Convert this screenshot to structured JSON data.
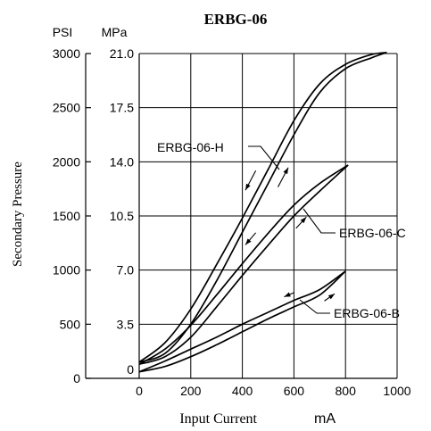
{
  "chart_data": {
    "type": "line",
    "title": "ERBG-06",
    "xlabel": "Input Current",
    "xunit": "mA",
    "ylabel": "Secondary Pressure",
    "y_left_unit": "PSI",
    "y_right_unit": "MPa",
    "xlim": [
      0,
      1000
    ],
    "ylim_psi": [
      0,
      3000
    ],
    "ylim_mpa": [
      0,
      21.0
    ],
    "x_ticks": [
      "0",
      "200",
      "400",
      "600",
      "800",
      "1000"
    ],
    "psi_ticks": [
      "0",
      "500",
      "1000",
      "1500",
      "2000",
      "2500",
      "3000"
    ],
    "mpa_ticks": [
      "0",
      "3.5",
      "7.0",
      "10.5",
      "14.0",
      "17.5",
      "21.0"
    ],
    "grid": true,
    "series": [
      {
        "name": "ERBG-06-H",
        "increasing": [
          [
            0,
            150
          ],
          [
            100,
            230
          ],
          [
            200,
            500
          ],
          [
            300,
            900
          ],
          [
            400,
            1350
          ],
          [
            500,
            1800
          ],
          [
            600,
            2250
          ],
          [
            700,
            2640
          ],
          [
            800,
            2860
          ],
          [
            900,
            2960
          ],
          [
            960,
            3010
          ]
        ],
        "decreasing": [
          [
            0,
            150
          ],
          [
            100,
            330
          ],
          [
            200,
            640
          ],
          [
            300,
            1050
          ],
          [
            400,
            1480
          ],
          [
            500,
            1930
          ],
          [
            600,
            2380
          ],
          [
            700,
            2720
          ],
          [
            800,
            2900
          ],
          [
            900,
            2990
          ],
          [
            960,
            3010
          ]
        ]
      },
      {
        "name": "ERBG-06-C",
        "increasing": [
          [
            0,
            130
          ],
          [
            100,
            200
          ],
          [
            200,
            380
          ],
          [
            300,
            660
          ],
          [
            400,
            950
          ],
          [
            500,
            1230
          ],
          [
            600,
            1500
          ],
          [
            700,
            1730
          ],
          [
            810,
            1970
          ]
        ],
        "decreasing": [
          [
            0,
            130
          ],
          [
            100,
            270
          ],
          [
            200,
            490
          ],
          [
            300,
            770
          ],
          [
            400,
            1060
          ],
          [
            500,
            1340
          ],
          [
            600,
            1600
          ],
          [
            700,
            1800
          ],
          [
            810,
            1970
          ]
        ]
      },
      {
        "name": "ERBG-06-B",
        "increasing": [
          [
            0,
            60
          ],
          [
            100,
            110
          ],
          [
            200,
            200
          ],
          [
            300,
            310
          ],
          [
            400,
            430
          ],
          [
            500,
            550
          ],
          [
            600,
            660
          ],
          [
            700,
            770
          ],
          [
            800,
            990
          ]
        ],
        "decreasing": [
          [
            0,
            60
          ],
          [
            100,
            160
          ],
          [
            200,
            270
          ],
          [
            300,
            380
          ],
          [
            400,
            500
          ],
          [
            500,
            610
          ],
          [
            600,
            720
          ],
          [
            700,
            820
          ],
          [
            800,
            990
          ]
        ]
      }
    ]
  }
}
